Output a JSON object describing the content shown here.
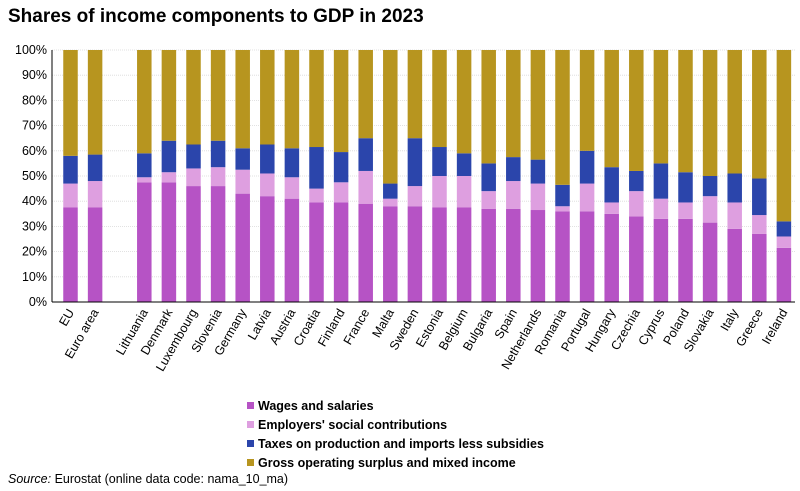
{
  "chart_data": {
    "type": "bar",
    "stacked": true,
    "title": "Shares of income components to GDP in 2023",
    "ylim": [
      0,
      100
    ],
    "yticks": [
      "0%",
      "10%",
      "20%",
      "30%",
      "40%",
      "50%",
      "60%",
      "70%",
      "80%",
      "90%",
      "100%"
    ],
    "xlabel": "",
    "ylabel": "",
    "categories": [
      "EU",
      "Euro area",
      "Lithuania",
      "Denmark",
      "Luxembourg",
      "Slovenia",
      "Germany",
      "Latvia",
      "Austria",
      "Croatia",
      "Finland",
      "France",
      "Malta",
      "Sweden",
      "Estonia",
      "Belgium",
      "Bulgaria",
      "Spain",
      "Netherlands",
      "Romania",
      "Portugal",
      "Hungary",
      "Czechia",
      "Cyprus",
      "Poland",
      "Slovakia",
      "Italy",
      "Greece",
      "Ireland"
    ],
    "groups": [
      [
        0,
        1
      ],
      [
        2,
        28
      ]
    ],
    "series": [
      {
        "name": "Wages and salaries",
        "color": "#b653c5",
        "values": [
          37.5,
          37.5,
          47.5,
          47.5,
          46,
          46,
          43,
          42,
          41,
          39.5,
          39.5,
          39,
          38,
          38,
          37.5,
          37.5,
          37,
          37,
          36.5,
          36,
          36,
          35,
          34,
          33,
          33,
          31.5,
          29,
          27,
          21.5
        ]
      },
      {
        "name": "Employers' social contributions",
        "color": "#de9fe0",
        "values": [
          9.5,
          10.5,
          2,
          4,
          7,
          7.5,
          9.5,
          9,
          8.5,
          5.5,
          8,
          13,
          3,
          8,
          12.5,
          12.5,
          7,
          11,
          10.5,
          2,
          11,
          4.5,
          10,
          8,
          6.5,
          10.5,
          10.5,
          7.5,
          4.5
        ]
      },
      {
        "name": "Taxes on production and imports less subsidies",
        "color": "#2b45ab",
        "values": [
          11,
          10.5,
          9.5,
          12.5,
          9.5,
          10.5,
          8.5,
          11.5,
          11.5,
          16.5,
          12,
          13,
          6,
          19,
          11.5,
          9,
          11,
          9.5,
          9.5,
          8.5,
          13,
          14,
          8,
          14,
          12,
          8,
          11.5,
          14.5,
          6
        ]
      },
      {
        "name": "Gross operating surplus and mixed income",
        "color": "#b7951f",
        "values": [
          42,
          41.5,
          41,
          36,
          37.5,
          36,
          39,
          37.5,
          39,
          38.5,
          40.5,
          35,
          53,
          35,
          38.5,
          41,
          45,
          42.5,
          43.5,
          53.5,
          40,
          46.5,
          48,
          45,
          48.5,
          50,
          49,
          51,
          68
        ]
      }
    ],
    "legend_position": "bottom"
  },
  "source": {
    "label": "Source:",
    "text": " Eurostat (online data code: nama_10_ma)"
  }
}
